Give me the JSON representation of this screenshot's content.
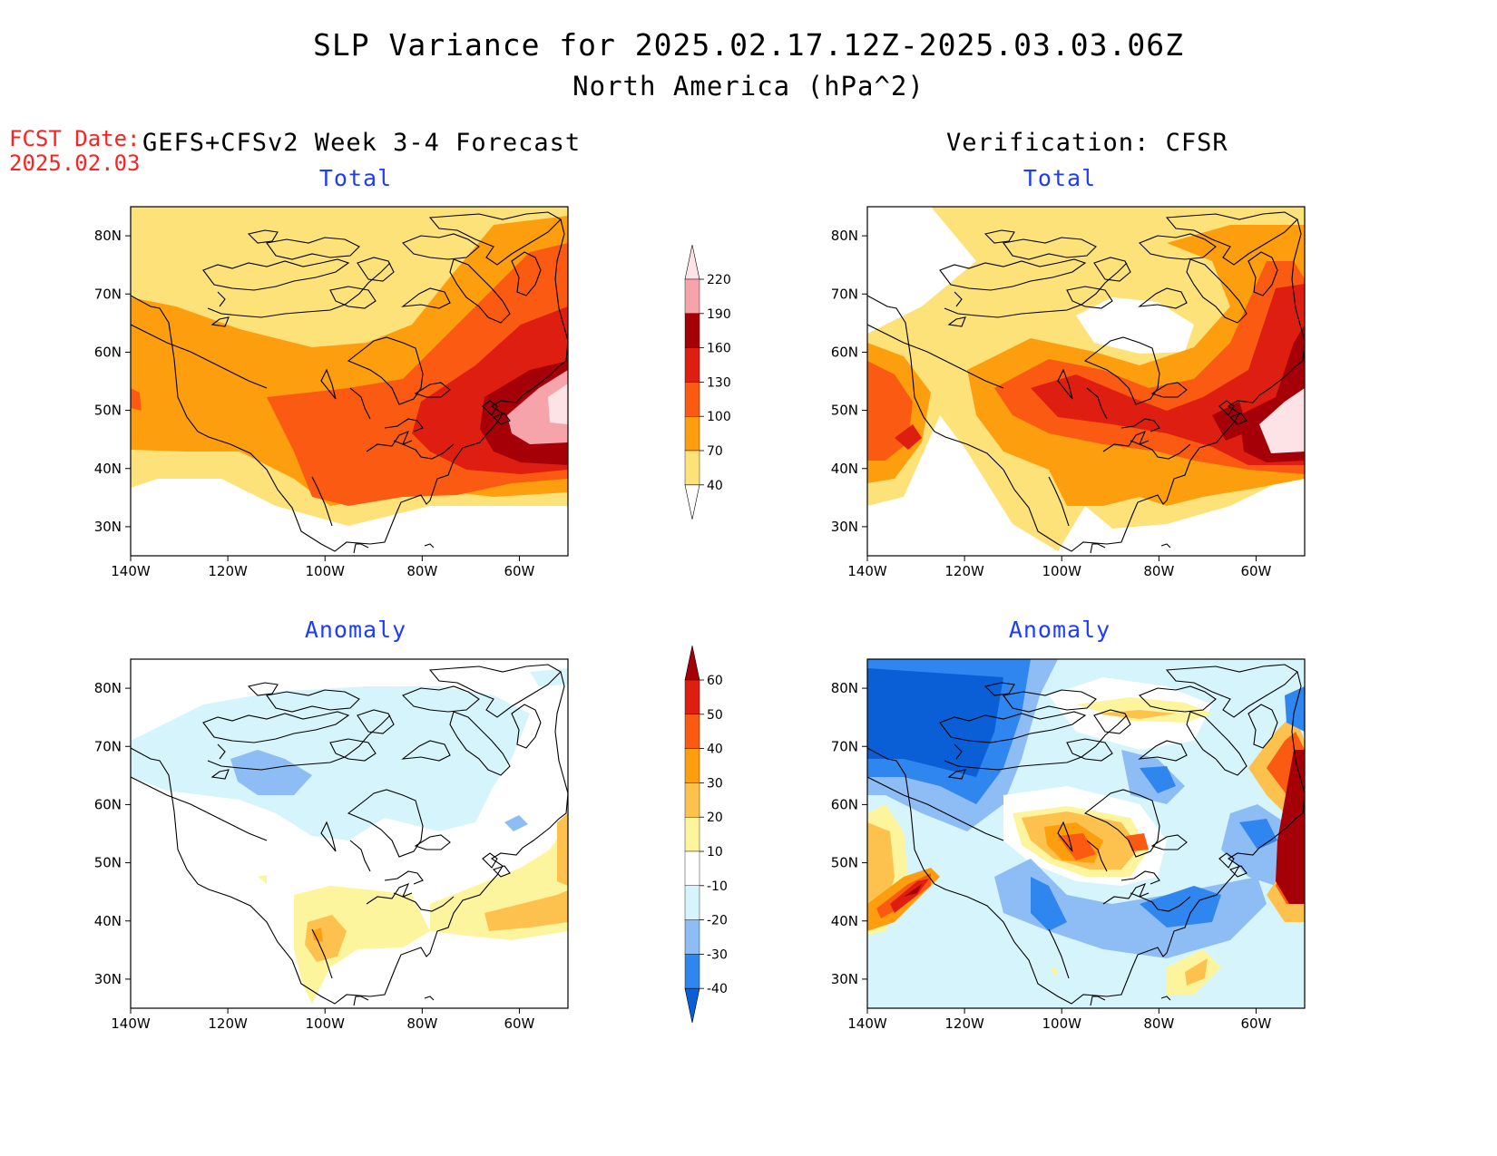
{
  "header": {
    "title": "SLP Variance for 2025.02.17.12Z-2025.03.03.06Z",
    "subtitle": "North America (hPa^2)",
    "fcst_label": "FCST Date:",
    "fcst_date": "2025.02.03",
    "left_column_title": "GEFS+CFSv2 Week 3-4 Forecast",
    "right_column_title": "Verification: CFSR"
  },
  "map_axes": {
    "lon_ticks": [
      "140W",
      "120W",
      "100W",
      "80W",
      "60W"
    ],
    "lat_ticks": [
      "80N",
      "70N",
      "60N",
      "50N",
      "40N",
      "30N"
    ],
    "lon_range": [
      -140,
      -50
    ],
    "lat_range": [
      25,
      85
    ]
  },
  "panels": [
    {
      "id": "forecast-total",
      "title": "Total"
    },
    {
      "id": "verification-total",
      "title": "Total"
    },
    {
      "id": "forecast-anomaly",
      "title": "Anomaly"
    },
    {
      "id": "verification-anomaly",
      "title": "Anomaly"
    }
  ],
  "colorbars": {
    "total": {
      "levels": [
        "40",
        "70",
        "100",
        "130",
        "160",
        "190",
        "220"
      ],
      "colors": [
        "#ffffff",
        "#fde27a",
        "#fd9e0f",
        "#fa5a12",
        "#de1e10",
        "#a50008",
        "#f6a3aa",
        "#fde3e5"
      ]
    },
    "anomaly": {
      "levels": [
        "-40",
        "-30",
        "-20",
        "-10",
        "10",
        "20",
        "30",
        "40",
        "50",
        "60"
      ],
      "colors": [
        "#0a5fd6",
        "#2f86ee",
        "#8dbdf4",
        "#d6f4fb",
        "#ffffff",
        "#fdf59e",
        "#fdc24e",
        "#fd9e0f",
        "#fa5a12",
        "#de1e10",
        "#a50008"
      ]
    }
  }
}
